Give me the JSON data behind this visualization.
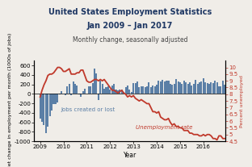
{
  "title1": "United States Employment Statistics",
  "title2": "Jan 2009 – Jan 2017",
  "subtitle": "Monthly change, seasonally adjusted",
  "xlabel": "Year",
  "ylabel_left": "Net change in employment per month (1000s of jobs)",
  "ylabel_right": "Percent unemployed",
  "bar_color": "#5b7fa6",
  "line_color": "#c0392b",
  "background_color": "#f0ede8",
  "ylim_left": [
    -1000,
    700
  ],
  "ylim_right": [
    4.5,
    10.5
  ],
  "yticks_left": [
    -1000,
    -800,
    -600,
    -400,
    -200,
    0,
    200,
    400,
    600
  ],
  "yticks_right": [
    4.5,
    5.0,
    5.5,
    6.0,
    6.5,
    7.0,
    7.5,
    8.0,
    8.5,
    9.0,
    9.5,
    10.0
  ],
  "label_jobs": "Jobs created or lost",
  "label_unemp": "Unemployment rate",
  "jobs_color": "#5b7fa6",
  "unemp_color": "#c0392b",
  "jobs_data": [
    -524,
    -598,
    -651,
    -825,
    -699,
    -467,
    -351,
    -212,
    -216,
    -190,
    -11,
    64,
    14,
    -37,
    167,
    208,
    -35,
    264,
    209,
    172,
    -14,
    -66,
    64,
    102,
    14,
    167,
    153,
    230,
    541,
    432,
    -125,
    285,
    208,
    107,
    147,
    152,
    96,
    168,
    216,
    83,
    74,
    84,
    87,
    40,
    141,
    170,
    96,
    42,
    221,
    232,
    254,
    149,
    166,
    163,
    140,
    166,
    239,
    135,
    178,
    163,
    194,
    270,
    262,
    299,
    253,
    283,
    278,
    212,
    197,
    213,
    306,
    261,
    240,
    212,
    283,
    238,
    211,
    243,
    169,
    208,
    295,
    211,
    248,
    260,
    329,
    237,
    223,
    204,
    244,
    223,
    271,
    244,
    152,
    167,
    271,
    188
  ],
  "unemp_data": [
    7.8,
    8.3,
    8.7,
    9.0,
    9.4,
    9.5,
    9.5,
    9.6,
    9.8,
    10.0,
    10.0,
    9.9,
    9.7,
    9.7,
    9.8,
    9.9,
    9.5,
    9.5,
    9.5,
    9.6,
    9.6,
    9.8,
    9.8,
    9.4,
    9.0,
    8.9,
    8.9,
    9.0,
    9.1,
    9.1,
    9.0,
    9.1,
    9.0,
    9.1,
    8.9,
    8.7,
    8.5,
    8.3,
    8.3,
    8.2,
    8.1,
    8.2,
    8.3,
    8.1,
    8.0,
    7.8,
    7.9,
    7.8,
    7.9,
    7.7,
    7.6,
    7.5,
    7.6,
    7.5,
    7.4,
    7.3,
    7.3,
    7.0,
    6.7,
    6.7,
    6.6,
    6.7,
    6.3,
    6.2,
    6.1,
    6.1,
    6.2,
    5.9,
    5.7,
    5.8,
    5.6,
    5.6,
    5.5,
    5.5,
    5.3,
    5.3,
    5.3,
    5.1,
    5.1,
    5.0,
    5.0,
    5.0,
    4.9,
    4.9,
    5.0,
    4.9,
    5.0,
    5.0,
    4.9,
    4.7,
    4.7,
    4.6,
    4.9,
    4.9,
    4.7,
    4.7
  ],
  "start_year": 2008.75,
  "end_year": 2016.95,
  "xticks": [
    2009,
    2010,
    2011,
    2012,
    2013,
    2014,
    2015,
    2016
  ],
  "title_color": "#1f3864",
  "title1_fontsize": 7.0,
  "title2_fontsize": 7.0,
  "subtitle_fontsize": 5.5,
  "tick_fontsize": 5.0,
  "xlabel_fontsize": 5.5,
  "ylabel_fontsize": 4.5,
  "label_fontsize": 5.0
}
